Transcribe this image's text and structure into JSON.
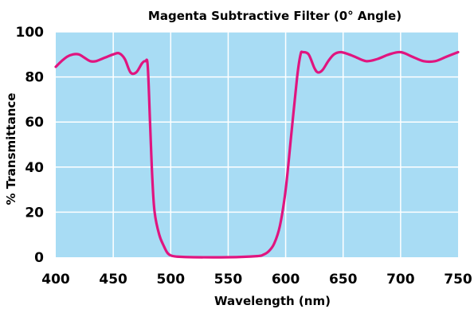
{
  "chart_data": {
    "type": "line",
    "title": "Magenta Subtractive Filter (0° Angle)",
    "xlabel": "Wavelength (nm)",
    "ylabel": "% Transmittance",
    "xlim": [
      400,
      750
    ],
    "ylim": [
      0,
      100
    ],
    "xticks": [
      400,
      450,
      500,
      550,
      600,
      650,
      700,
      750
    ],
    "yticks": [
      0,
      20,
      40,
      60,
      80,
      100
    ],
    "xtick_labels": [
      "400",
      "450",
      "500",
      "550",
      "600",
      "650",
      "700",
      "750"
    ],
    "ytick_labels": [
      "0",
      "20",
      "40",
      "60",
      "80",
      "100"
    ],
    "grid": true,
    "colors": {
      "plot_background": "#a8dcf4",
      "grid": "#ffffff",
      "line": "#e0157f"
    },
    "series": [
      {
        "points": [
          [
            400,
            84.5
          ],
          [
            405,
            87
          ],
          [
            410,
            89
          ],
          [
            415,
            90
          ],
          [
            420,
            90
          ],
          [
            425,
            88.5
          ],
          [
            430,
            87
          ],
          [
            435,
            87
          ],
          [
            440,
            88
          ],
          [
            445,
            89
          ],
          [
            450,
            90
          ],
          [
            455,
            90.5
          ],
          [
            460,
            88
          ],
          [
            465,
            82
          ],
          [
            470,
            82
          ],
          [
            475,
            86
          ],
          [
            478,
            87
          ],
          [
            480,
            85
          ],
          [
            482,
            60
          ],
          [
            484,
            35
          ],
          [
            486,
            20
          ],
          [
            490,
            10
          ],
          [
            494,
            5
          ],
          [
            497,
            2
          ],
          [
            500,
            0.8
          ],
          [
            505,
            0.3
          ],
          [
            520,
            0
          ],
          [
            550,
            0
          ],
          [
            575,
            0.5
          ],
          [
            580,
            1
          ],
          [
            585,
            2.5
          ],
          [
            590,
            6
          ],
          [
            595,
            14
          ],
          [
            600,
            30
          ],
          [
            605,
            55
          ],
          [
            610,
            80
          ],
          [
            613,
            90
          ],
          [
            615,
            91
          ],
          [
            620,
            90
          ],
          [
            625,
            84
          ],
          [
            628,
            82
          ],
          [
            632,
            83
          ],
          [
            637,
            87
          ],
          [
            642,
            90
          ],
          [
            648,
            91
          ],
          [
            655,
            90
          ],
          [
            660,
            89
          ],
          [
            670,
            87
          ],
          [
            680,
            88
          ],
          [
            690,
            90
          ],
          [
            700,
            91
          ],
          [
            710,
            89
          ],
          [
            720,
            87
          ],
          [
            730,
            87
          ],
          [
            740,
            89
          ],
          [
            750,
            91
          ]
        ]
      }
    ]
  }
}
